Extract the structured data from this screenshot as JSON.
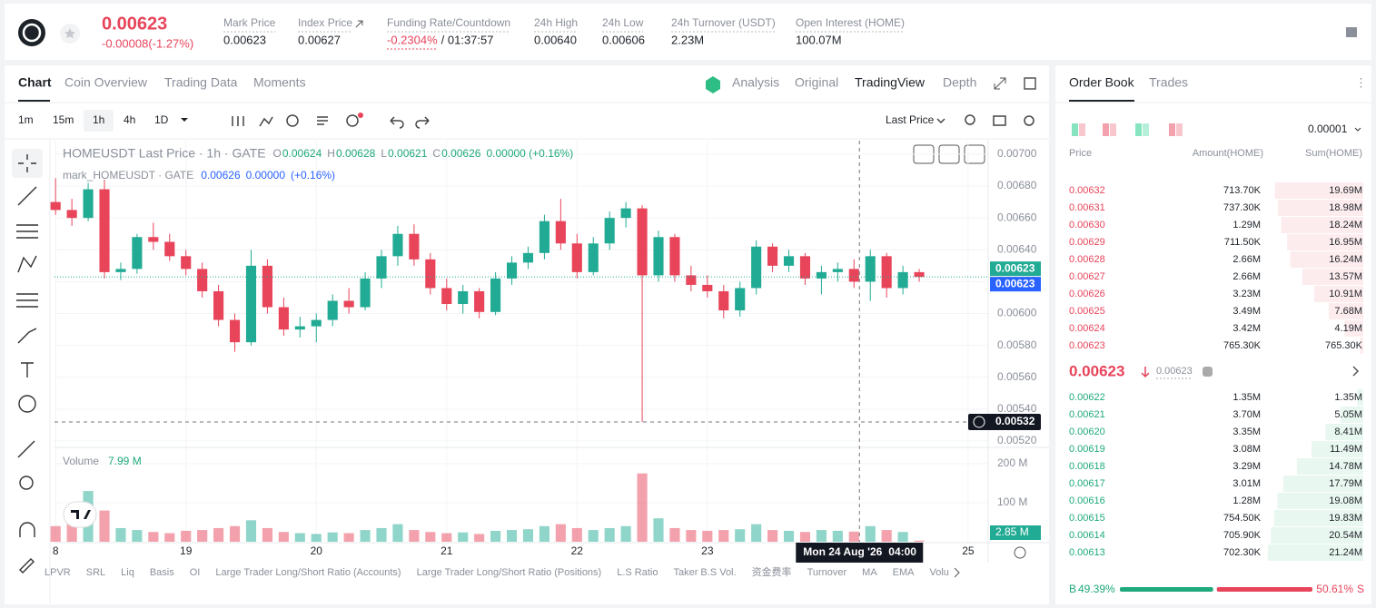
{
  "header": {
    "price": "0.00623",
    "change": "-0.00008(-1.27%)",
    "stats": [
      {
        "label": "Mark Price",
        "value": "0.00623"
      },
      {
        "label": "Index Price",
        "value": "0.00627"
      },
      {
        "label": "Funding Rate/Countdown",
        "value": "-0.2304%",
        "extra": "/ 01:37:57"
      },
      {
        "label": "24h High",
        "value": "0.00640"
      },
      {
        "label": "24h Low",
        "value": "0.00606"
      },
      {
        "label": "24h Turnover (USDT)",
        "value": "2.23M"
      },
      {
        "label": "Open Interest (HOME)",
        "value": "100.07M"
      }
    ]
  },
  "chart_tabs": [
    "Chart",
    "Coin Overview",
    "Trading Data",
    "Moments"
  ],
  "view_tabs": [
    "Analysis",
    "Original",
    "TradingView",
    "Depth"
  ],
  "intervals": [
    "1m",
    "15m",
    "1h",
    "4h",
    "1D"
  ],
  "price_type": "Last Price",
  "legend": {
    "symbol": "HOMEUSDT Last Price · 1h · GATE",
    "fields": [
      {
        "k": "O",
        "v": "0.00624"
      },
      {
        "k": "H",
        "v": "0.00628"
      },
      {
        "k": "L",
        "v": "0.00621"
      },
      {
        "k": "C",
        "v": "0.00626"
      }
    ],
    "change": "0.00000 (+0.16%)",
    "mark_symbol": "mark_HOMEUSDT · GATE",
    "mark_price": "0.00626",
    "mark_change": "0.00000",
    "mark_pct": "(+0.16%)",
    "volume_label": "Volume",
    "volume_value": "7.99 M"
  },
  "chart_data": {
    "type": "candlestick",
    "up_color": "#22ab94",
    "down_color": "#e8445a",
    "mark_color": "#2962ff",
    "x": [
      0,
      3,
      6,
      9,
      12,
      15,
      18,
      21,
      24,
      27,
      30,
      33,
      36,
      39,
      42,
      45,
      48,
      51,
      54,
      57,
      60,
      63,
      66,
      69,
      72,
      75,
      78,
      81,
      84,
      87,
      90,
      93,
      96,
      99,
      102,
      105,
      108,
      111,
      114,
      117,
      120,
      123,
      126,
      129,
      132,
      135,
      138,
      141,
      144,
      147,
      150,
      153,
      156,
      159
    ],
    "open": [
      0.0067,
      0.00665,
      0.0066,
      0.00678,
      0.00626,
      0.00628,
      0.00648,
      0.00645,
      0.00636,
      0.00628,
      0.00614,
      0.00596,
      0.00582,
      0.0063,
      0.00604,
      0.0059,
      0.00592,
      0.00596,
      0.00608,
      0.00604,
      0.00622,
      0.00636,
      0.0065,
      0.00634,
      0.00616,
      0.00606,
      0.00614,
      0.00601,
      0.00622,
      0.00632,
      0.00638,
      0.00658,
      0.00644,
      0.00626,
      0.00644,
      0.0066,
      0.00666,
      0.00624,
      0.00648,
      0.00624,
      0.00618,
      0.00614,
      0.00602,
      0.00616,
      0.00642,
      0.0063,
      0.00636,
      0.00622,
      0.00626,
      0.00628,
      0.0062,
      0.00636,
      0.00616,
      0.00626
    ],
    "high": [
      0.00685,
      0.00672,
      0.00682,
      0.00684,
      0.00632,
      0.0065,
      0.00657,
      0.0065,
      0.0064,
      0.00632,
      0.00618,
      0.006,
      0.0064,
      0.00634,
      0.0061,
      0.00598,
      0.006,
      0.00612,
      0.00616,
      0.00626,
      0.0064,
      0.00655,
      0.00656,
      0.00638,
      0.00622,
      0.00618,
      0.00616,
      0.00626,
      0.00636,
      0.00642,
      0.00662,
      0.00672,
      0.0065,
      0.00648,
      0.00664,
      0.0067,
      0.00668,
      0.00652,
      0.0065,
      0.0063,
      0.00624,
      0.00618,
      0.0062,
      0.00646,
      0.00644,
      0.0064,
      0.00638,
      0.0063,
      0.00632,
      0.00634,
      0.0064,
      0.00638,
      0.0063,
      0.00628
    ],
    "low": [
      0.00662,
      0.00655,
      0.00658,
      0.00622,
      0.00621,
      0.00625,
      0.0064,
      0.00633,
      0.00624,
      0.0061,
      0.00592,
      0.00576,
      0.0058,
      0.006,
      0.00586,
      0.00585,
      0.00582,
      0.00592,
      0.006,
      0.00602,
      0.00616,
      0.0063,
      0.0063,
      0.00612,
      0.00602,
      0.006,
      0.00597,
      0.00599,
      0.00618,
      0.00628,
      0.00634,
      0.0064,
      0.00622,
      0.00624,
      0.0064,
      0.00654,
      0.00532,
      0.0062,
      0.0062,
      0.00614,
      0.0061,
      0.00597,
      0.00598,
      0.00612,
      0.00626,
      0.00626,
      0.00618,
      0.00612,
      0.0062,
      0.00616,
      0.00608,
      0.0061,
      0.00612,
      0.0062
    ],
    "close": [
      0.00665,
      0.0066,
      0.00678,
      0.00626,
      0.00628,
      0.00648,
      0.00645,
      0.00636,
      0.00628,
      0.00614,
      0.00596,
      0.00582,
      0.0063,
      0.00604,
      0.0059,
      0.00592,
      0.00596,
      0.00608,
      0.00604,
      0.00622,
      0.00636,
      0.0065,
      0.00634,
      0.00616,
      0.00606,
      0.00614,
      0.00601,
      0.00622,
      0.00632,
      0.00638,
      0.00658,
      0.00644,
      0.00626,
      0.00644,
      0.0066,
      0.00666,
      0.00624,
      0.00648,
      0.00624,
      0.00618,
      0.00614,
      0.00602,
      0.00616,
      0.00642,
      0.0063,
      0.00636,
      0.00622,
      0.00626,
      0.00628,
      0.0062,
      0.00636,
      0.00616,
      0.00626,
      0.00623
    ],
    "volume": [
      40,
      55,
      130,
      80,
      35,
      30,
      25,
      22,
      28,
      30,
      35,
      40,
      55,
      35,
      25,
      22,
      20,
      24,
      22,
      30,
      35,
      45,
      30,
      25,
      22,
      24,
      20,
      28,
      30,
      32,
      40,
      45,
      35,
      30,
      35,
      40,
      175,
      60,
      35,
      30,
      28,
      30,
      32,
      45,
      30,
      28,
      25,
      30,
      28,
      26,
      40,
      30,
      25,
      2.85
    ],
    "last_volume_label": "2.85 M",
    "xlim": [
      -0.2,
      171.7
    ],
    "xticks": [
      {
        "value": 0,
        "label": "8"
      },
      {
        "value": 24,
        "label": "19"
      },
      {
        "value": 48,
        "label": "20"
      },
      {
        "value": 72,
        "label": "21"
      },
      {
        "value": 96,
        "label": "22"
      },
      {
        "value": 120,
        "label": "23"
      },
      {
        "value": 168,
        "label": "25"
      }
    ],
    "ylim": [
      0.005166,
      0.007085
    ],
    "yticks": [
      {
        "value": 0.0052,
        "label": "0.00520"
      },
      {
        "value": 0.0054,
        "label": "0.00540"
      },
      {
        "value": 0.0056,
        "label": "0.00560"
      },
      {
        "value": 0.0058,
        "label": "0.00580"
      },
      {
        "value": 0.006,
        "label": "0.00600"
      },
      {
        "value": 0.0062,
        "label": "0.00620"
      },
      {
        "value": 0.0064,
        "label": "0.00640"
      },
      {
        "value": 0.0066,
        "label": "0.00660"
      },
      {
        "value": 0.0068,
        "label": "0.00680"
      },
      {
        "value": 0.007,
        "label": "0.00700"
      }
    ],
    "volume_ylim": [
      0,
      237
    ],
    "volume_ticks": [
      {
        "value": 100,
        "label": "100 M"
      },
      {
        "value": 200,
        "label": "200 M"
      }
    ],
    "last_price": 0.00623,
    "mark_price": 0.00623,
    "crosshair": {
      "price": 0.00532,
      "price_label": "0.00532",
      "x": 148,
      "date_label": "Mon 24 Aug '26",
      "time_label": "04:00"
    }
  },
  "indicators": [
    "LPVR",
    "SRL",
    "Liq",
    "Basis",
    "OI",
    "Large Trader Long/Short Ratio (Accounts)",
    "Large Trader Long/Short Ratio (Positions)",
    "L.S Ratio",
    "Taker B.S Vol.",
    "资金费率",
    "Turnover",
    "MA",
    "EMA",
    "Volu"
  ],
  "order_book": {
    "tabs": [
      "Order Book",
      "Trades"
    ],
    "precision": "0.00001",
    "headers": [
      "Price",
      "Amount(HOME)",
      "Sum(HOME)"
    ],
    "asks": [
      [
        "0.00632",
        "713.70K",
        "19.69M"
      ],
      [
        "0.00631",
        "737.30K",
        "18.98M"
      ],
      [
        "0.00630",
        "1.29M",
        "18.24M"
      ],
      [
        "0.00629",
        "711.50K",
        "16.95M"
      ],
      [
        "0.00628",
        "2.66M",
        "16.24M"
      ],
      [
        "0.00627",
        "2.66M",
        "13.57M"
      ],
      [
        "0.00626",
        "3.23M",
        "10.91M"
      ],
      [
        "0.00625",
        "3.49M",
        "7.68M"
      ],
      [
        "0.00624",
        "3.42M",
        "4.19M"
      ],
      [
        "0.00623",
        "765.30K",
        "765.30K"
      ]
    ],
    "mid_price": "0.00623",
    "mid_mark": "0.00623",
    "bids": [
      [
        "0.00622",
        "1.35M",
        "1.35M"
      ],
      [
        "0.00621",
        "3.70M",
        "5.05M"
      ],
      [
        "0.00620",
        "3.35M",
        "8.41M"
      ],
      [
        "0.00619",
        "3.08M",
        "11.49M"
      ],
      [
        "0.00618",
        "3.29M",
        "14.78M"
      ],
      [
        "0.00617",
        "3.01M",
        "17.79M"
      ],
      [
        "0.00616",
        "1.28M",
        "19.08M"
      ],
      [
        "0.00615",
        "754.50K",
        "19.83M"
      ],
      [
        "0.00614",
        "705.90K",
        "20.54M"
      ],
      [
        "0.00613",
        "702.30K",
        "21.24M"
      ]
    ],
    "buy_letter": "B",
    "buy_ratio": "49.39%",
    "sell_ratio": "50.61%",
    "sell_letter": "S"
  }
}
